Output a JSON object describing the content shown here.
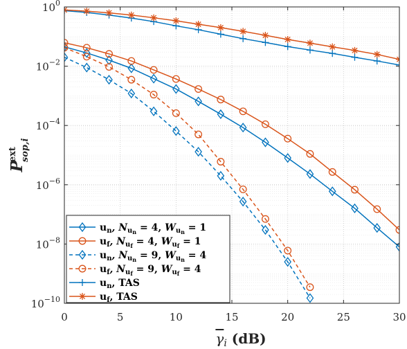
{
  "chart_data": {
    "type": "line",
    "title": "",
    "xlabel": "γ̄ᵢ (dB)",
    "ylabel": "P^ext_sop,i",
    "xlim": [
      0,
      30
    ],
    "ylim": [
      1e-10,
      1
    ],
    "yscale": "log",
    "grid": true,
    "legend_position": "bottom-left",
    "x_ticks": [
      0,
      5,
      10,
      15,
      20,
      25,
      30
    ],
    "x_tick_labels": [
      "0",
      "5",
      "10",
      "15",
      "20",
      "25",
      "30"
    ],
    "y_ticks": [
      1,
      0.01,
      0.0001,
      1e-06,
      1e-08,
      1e-10
    ],
    "y_tick_labels": [
      {
        "base": "10",
        "exp": "0"
      },
      {
        "base": "10",
        "exp": "−2"
      },
      {
        "base": "10",
        "exp": "−4"
      },
      {
        "base": "10",
        "exp": "−6"
      },
      {
        "base": "10",
        "exp": "−8"
      },
      {
        "base": "10",
        "exp": "−10"
      }
    ],
    "colors": {
      "blue": "#0072BD",
      "orange": "#D95319"
    },
    "series": [
      {
        "name": "u_n, N_un = 4, W_un = 1",
        "color": "#0072BD",
        "dash": false,
        "marker": "diamond",
        "x": [
          0,
          2,
          4,
          6,
          8,
          10,
          12,
          14,
          16,
          18,
          20,
          22,
          24,
          26,
          28,
          30
        ],
        "y": [
          0.045,
          0.028,
          0.016,
          0.0085,
          0.0038,
          0.0017,
          0.00065,
          0.00024,
          8.5e-05,
          2.7e-05,
          8e-06,
          2.3e-06,
          6e-07,
          1.6e-07,
          3.5e-08,
          8e-09
        ]
      },
      {
        "name": "u_f, N_uf = 4, W_uf = 1",
        "color": "#D95319",
        "dash": false,
        "marker": "circle",
        "x": [
          0,
          2,
          4,
          6,
          8,
          10,
          12,
          14,
          16,
          18,
          20,
          22,
          24,
          26,
          28,
          30
        ],
        "y": [
          0.062,
          0.042,
          0.026,
          0.015,
          0.0075,
          0.0037,
          0.0017,
          0.00075,
          0.0003,
          0.00011,
          3.6e-05,
          1.1e-05,
          2.7e-06,
          6.8e-07,
          1.5e-07,
          3e-08
        ]
      },
      {
        "name": "u_n, N_un = 9, W_un = 4",
        "color": "#0072BD",
        "dash": true,
        "marker": "diamond",
        "x": [
          0,
          2,
          4,
          6,
          8,
          10,
          12,
          14,
          16,
          18,
          20,
          22
        ],
        "y": [
          0.02,
          0.009,
          0.0035,
          0.0012,
          0.0003,
          6.5e-05,
          1.3e-05,
          2e-06,
          2.7e-07,
          3e-08,
          2.5e-09,
          1.5e-10
        ]
      },
      {
        "name": "u_f, N_uf = 9, W_uf = 4",
        "color": "#D95319",
        "dash": true,
        "marker": "circle",
        "x": [
          0,
          2,
          4,
          6,
          8,
          10,
          12,
          14,
          16,
          18,
          20,
          22
        ],
        "y": [
          0.042,
          0.021,
          0.0095,
          0.0035,
          0.0011,
          0.00026,
          5e-05,
          6e-06,
          7e-07,
          7e-08,
          6e-09,
          3.5e-10
        ]
      },
      {
        "name": "u_n, TAS",
        "color": "#0072BD",
        "dash": false,
        "marker": "plus",
        "x": [
          0,
          2,
          4,
          6,
          8,
          10,
          12,
          14,
          16,
          18,
          20,
          22,
          24,
          26,
          28,
          30
        ],
        "y": [
          0.75,
          0.65,
          0.53,
          0.42,
          0.32,
          0.23,
          0.17,
          0.12,
          0.085,
          0.063,
          0.046,
          0.035,
          0.027,
          0.02,
          0.015,
          0.011
        ]
      },
      {
        "name": "u_f, TAS",
        "color": "#D95319",
        "dash": false,
        "marker": "star",
        "x": [
          0,
          2,
          4,
          6,
          8,
          10,
          12,
          14,
          16,
          18,
          20,
          22,
          24,
          26,
          28,
          30
        ],
        "y": [
          0.79,
          0.72,
          0.63,
          0.53,
          0.43,
          0.34,
          0.26,
          0.2,
          0.15,
          0.11,
          0.08,
          0.06,
          0.045,
          0.034,
          0.025,
          0.017
        ]
      }
    ]
  }
}
